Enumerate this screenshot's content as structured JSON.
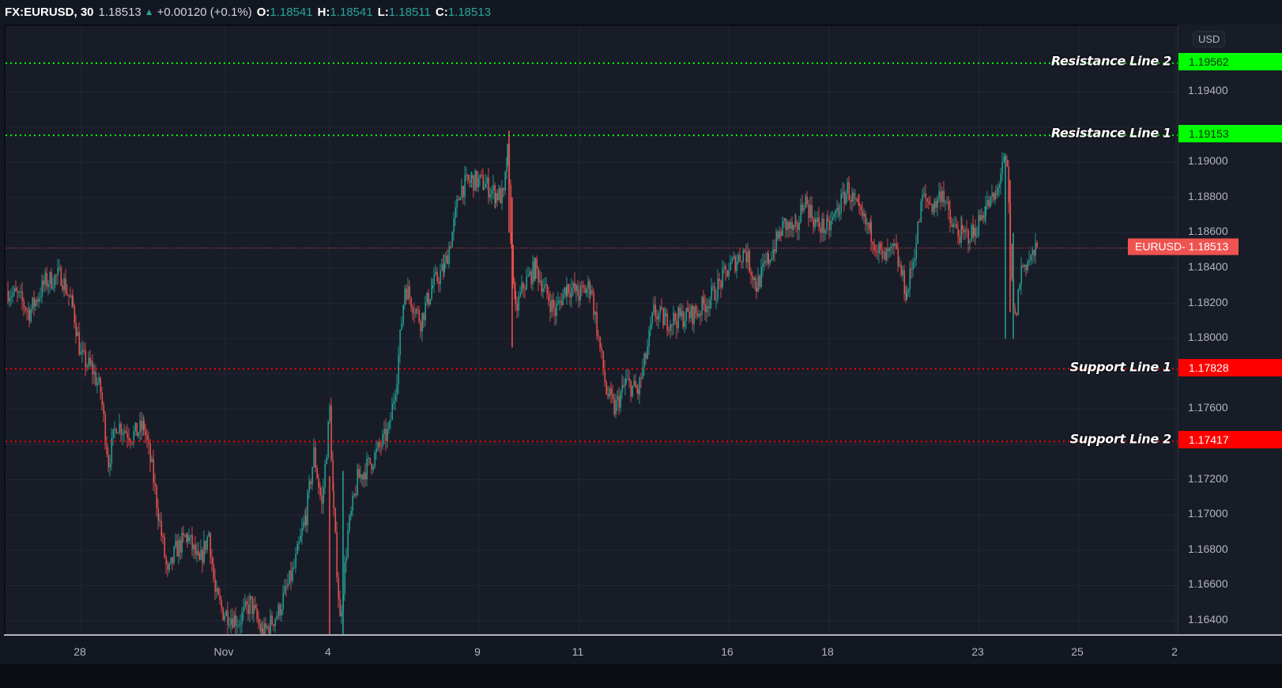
{
  "header": {
    "symbol": "FX:EURUSD, 30",
    "last": "1.18513",
    "direction": "▲",
    "change": "+0.00120 (+0.1%)",
    "o_label": "O:",
    "o_value": "1.18541",
    "h_label": "H:",
    "h_value": "1.18541",
    "l_label": "L:",
    "l_value": "1.18511",
    "c_label": "C:",
    "c_value": "1.18513"
  },
  "axis": {
    "currency": "USD",
    "price_ticks": [
      "1.19400",
      "1.19000",
      "1.18800",
      "1.18600",
      "1.18400",
      "1.18200",
      "1.18000",
      "1.17600",
      "1.17200",
      "1.17000",
      "1.16800",
      "1.16600",
      "1.16400"
    ],
    "time_ticks": [
      "28",
      "Nov",
      "4",
      "9",
      "11",
      "16",
      "18",
      "23",
      "25",
      "2"
    ]
  },
  "last_price_badge": "EURUSD- 1.18513",
  "colors": {
    "up": "#26a69a",
    "down": "#ef5350",
    "resistance": "#00ff00",
    "support": "#ff0000",
    "background": "#181c27",
    "grid": "#232734"
  },
  "levels": [
    {
      "label": "Resistance Line 2",
      "value": "1.19562",
      "type": "resistance"
    },
    {
      "label": "Resistance Line 1",
      "value": "1.19153",
      "type": "resistance"
    },
    {
      "label": "Support Line 1",
      "value": "1.17828",
      "type": "support"
    },
    {
      "label": "Support Line 2",
      "value": "1.17417",
      "type": "support"
    }
  ],
  "chart_data": {
    "type": "candlestick",
    "title": "FX:EURUSD, 30",
    "xlabel": "",
    "ylabel": "USD",
    "ylim": [
      1.1628,
      1.1974
    ],
    "grid": true,
    "x_ticks": [
      "28",
      "Nov",
      "4",
      "9",
      "11",
      "16",
      "18",
      "23",
      "25",
      "2"
    ],
    "y_ticks": [
      1.194,
      1.192,
      1.19,
      1.188,
      1.186,
      1.184,
      1.182,
      1.18,
      1.178,
      1.176,
      1.174,
      1.172,
      1.17,
      1.168,
      1.166,
      1.164
    ],
    "horizontal_lines": [
      {
        "name": "Resistance Line 2",
        "y": 1.19562,
        "color": "#00ff00",
        "style": "dotted"
      },
      {
        "name": "Resistance Line 1",
        "y": 1.19153,
        "color": "#00ff00",
        "style": "dotted"
      },
      {
        "name": "Last price EURUSD",
        "y": 1.18513,
        "color": "#ef5350",
        "style": "dotted"
      },
      {
        "name": "Support Line 1",
        "y": 1.17828,
        "color": "#ff0000",
        "style": "dotted"
      },
      {
        "name": "Support Line 2",
        "y": 1.17417,
        "color": "#ff0000",
        "style": "dotted"
      }
    ],
    "price_path_approx": {
      "note": "approximate close path read from chart (x in px, price)",
      "points": [
        [
          8,
          1.1827
        ],
        [
          20,
          1.1824
        ],
        [
          35,
          1.1815
        ],
        [
          55,
          1.1832
        ],
        [
          75,
          1.1836
        ],
        [
          90,
          1.1818
        ],
        [
          100,
          1.179
        ],
        [
          115,
          1.1782
        ],
        [
          125,
          1.177
        ],
        [
          135,
          1.173
        ],
        [
          145,
          1.1752
        ],
        [
          165,
          1.1745
        ],
        [
          180,
          1.175
        ],
        [
          190,
          1.1726
        ],
        [
          200,
          1.1695
        ],
        [
          210,
          1.1665
        ],
        [
          220,
          1.168
        ],
        [
          235,
          1.1688
        ],
        [
          250,
          1.1672
        ],
        [
          262,
          1.169
        ],
        [
          270,
          1.1655
        ],
        [
          280,
          1.1645
        ],
        [
          300,
          1.164
        ],
        [
          315,
          1.165
        ],
        [
          330,
          1.1632
        ],
        [
          350,
          1.1645
        ],
        [
          370,
          1.167
        ],
        [
          385,
          1.17
        ],
        [
          395,
          1.1735
        ],
        [
          405,
          1.1705
        ],
        [
          415,
          1.176
        ],
        [
          420,
          1.17
        ],
        [
          428,
          1.164
        ],
        [
          438,
          1.169
        ],
        [
          450,
          1.172
        ],
        [
          470,
          1.1732
        ],
        [
          490,
          1.1748
        ],
        [
          500,
          1.178
        ],
        [
          510,
          1.183
        ],
        [
          520,
          1.182
        ],
        [
          530,
          1.181
        ],
        [
          545,
          1.183
        ],
        [
          560,
          1.184
        ],
        [
          570,
          1.186
        ],
        [
          580,
          1.1885
        ],
        [
          595,
          1.189
        ],
        [
          610,
          1.1888
        ],
        [
          625,
          1.1882
        ],
        [
          635,
          1.188
        ],
        [
          640,
          1.1905
        ],
        [
          645,
          1.185
        ],
        [
          650,
          1.1815
        ],
        [
          660,
          1.183
        ],
        [
          675,
          1.184
        ],
        [
          690,
          1.1825
        ],
        [
          700,
          1.1815
        ],
        [
          715,
          1.183
        ],
        [
          730,
          1.1825
        ],
        [
          745,
          1.183
        ],
        [
          755,
          1.18
        ],
        [
          765,
          1.177
        ],
        [
          775,
          1.176
        ],
        [
          790,
          1.1775
        ],
        [
          805,
          1.177
        ],
        [
          815,
          1.179
        ],
        [
          825,
          1.1815
        ],
        [
          840,
          1.181
        ],
        [
          860,
          1.1812
        ],
        [
          880,
          1.1815
        ],
        [
          900,
          1.1825
        ],
        [
          920,
          1.184
        ],
        [
          940,
          1.185
        ],
        [
          955,
          1.183
        ],
        [
          970,
          1.1845
        ],
        [
          990,
          1.1865
        ],
        [
          1005,
          1.186
        ],
        [
          1015,
          1.188
        ],
        [
          1030,
          1.1865
        ],
        [
          1045,
          1.1862
        ],
        [
          1060,
          1.1875
        ],
        [
          1070,
          1.1885
        ],
        [
          1085,
          1.187
        ],
        [
          1100,
          1.186
        ],
        [
          1115,
          1.1845
        ],
        [
          1130,
          1.185
        ],
        [
          1145,
          1.1825
        ],
        [
          1155,
          1.185
        ],
        [
          1165,
          1.188
        ],
        [
          1180,
          1.1875
        ],
        [
          1190,
          1.1885
        ],
        [
          1200,
          1.1865
        ],
        [
          1215,
          1.1858
        ],
        [
          1230,
          1.186
        ],
        [
          1245,
          1.1875
        ],
        [
          1258,
          1.188
        ],
        [
          1266,
          1.19
        ],
        [
          1272,
          1.1895
        ],
        [
          1278,
          1.183
        ],
        [
          1282,
          1.181
        ],
        [
          1290,
          1.184
        ],
        [
          1300,
          1.1845
        ],
        [
          1312,
          1.1851
        ]
      ]
    }
  }
}
